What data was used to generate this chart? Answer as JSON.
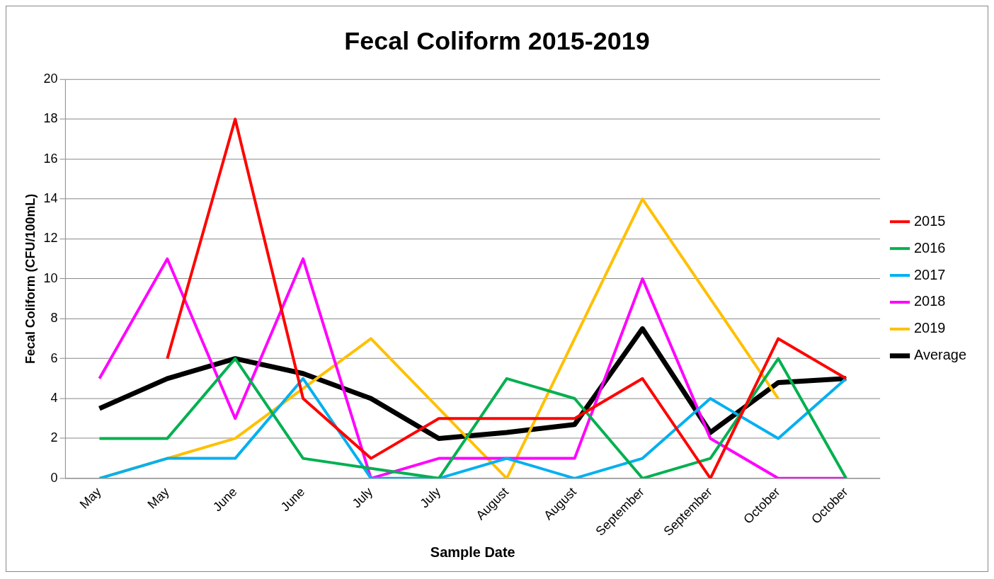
{
  "chart_data": {
    "type": "line",
    "title": "Fecal Coliform 2015-2019",
    "xlabel": "Sample Date",
    "ylabel": "Fecal Coliform (CFU/100mL)",
    "categories": [
      "May",
      "May",
      "June",
      "June",
      "July",
      "July",
      "August",
      "August",
      "September",
      "September",
      "October",
      "October"
    ],
    "series": [
      {
        "name": "2015",
        "color": "#ff0000",
        "values": [
          null,
          6,
          18,
          4,
          1,
          3,
          3,
          3,
          5,
          0,
          7,
          5
        ]
      },
      {
        "name": "2016",
        "color": "#00b050",
        "values": [
          2,
          2,
          6,
          1,
          0.5,
          0,
          5,
          4,
          0,
          1,
          6,
          0
        ]
      },
      {
        "name": "2017",
        "color": "#00b0f0",
        "values": [
          0,
          1,
          1,
          5,
          0,
          0,
          1,
          0,
          1,
          4,
          2,
          5
        ]
      },
      {
        "name": "2018",
        "color": "#ff00ff",
        "values": [
          5,
          11,
          3,
          11,
          0,
          1,
          1,
          1,
          10,
          2,
          0,
          0
        ]
      },
      {
        "name": "2019",
        "color": "#ffc000",
        "values": [
          0,
          1,
          2,
          4.5,
          7,
          3.5,
          0,
          7,
          14,
          9,
          4,
          null
        ]
      },
      {
        "name": "Average",
        "color": "#000000",
        "values": [
          3.5,
          5,
          6,
          5.25,
          4,
          2,
          2.3,
          2.7,
          7.5,
          2.3,
          4.8,
          5
        ]
      }
    ],
    "ylim": [
      0,
      20
    ],
    "yticks": [
      0,
      2,
      4,
      6,
      8,
      10,
      12,
      14,
      16,
      18,
      20
    ],
    "grid": "y",
    "legend": "right",
    "marker": "none",
    "line_style": "solid"
  }
}
